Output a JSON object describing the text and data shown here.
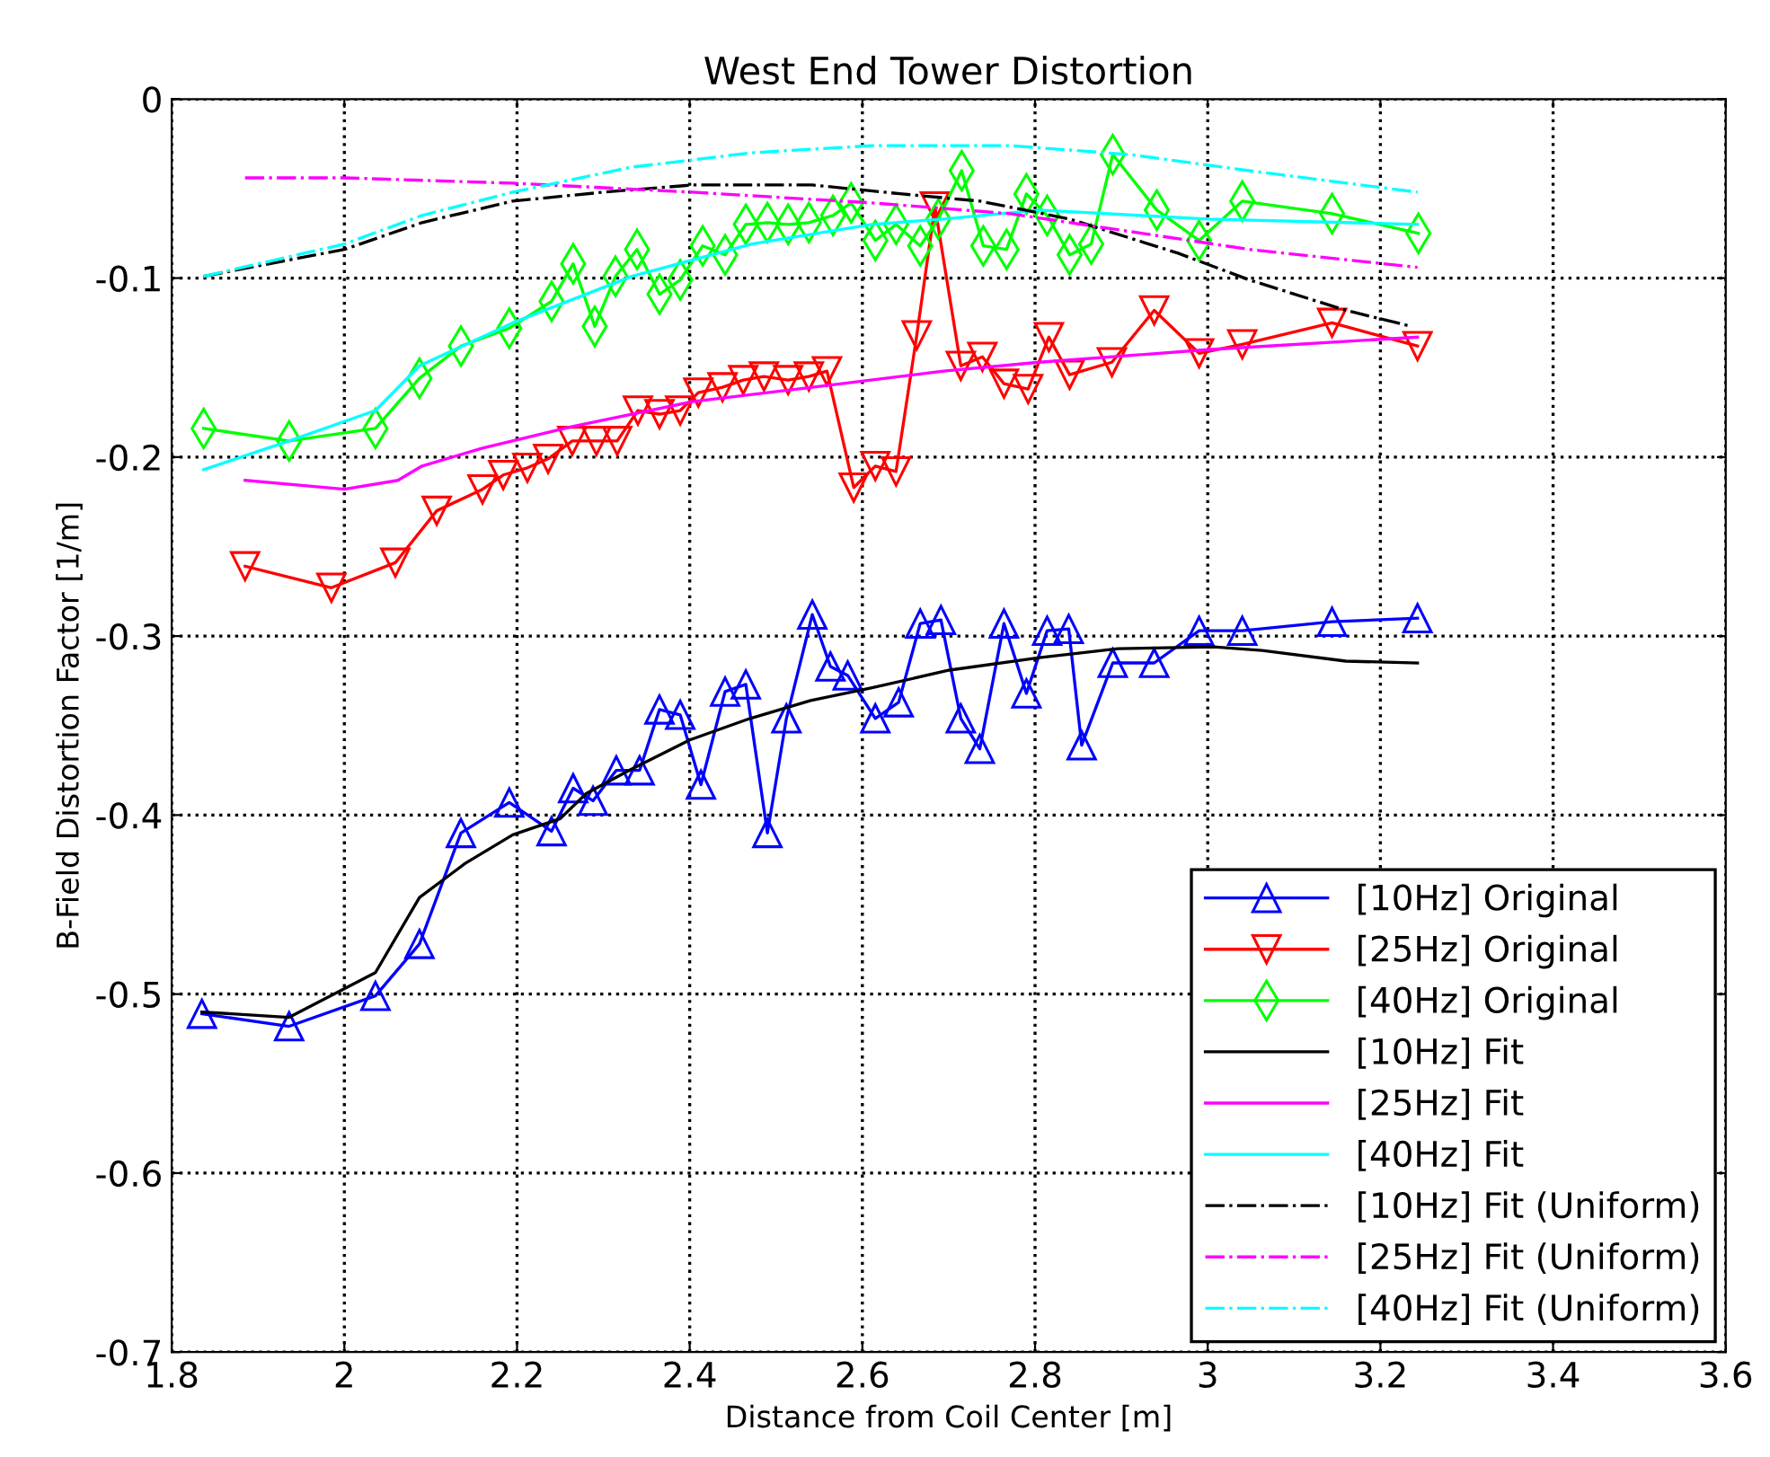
{
  "chart_data": {
    "type": "line",
    "title": "West End Tower Distortion",
    "xlabel": "Distance from Coil Center [m]",
    "ylabel": "B-Field Distortion Factor [1/m]",
    "xlim": [
      1.8,
      3.6
    ],
    "ylim": [
      -0.7,
      0
    ],
    "xticks": [
      1.8,
      2,
      2.2,
      2.4,
      2.6,
      2.8,
      3,
      3.2,
      3.4,
      3.6
    ],
    "yticks": [
      -0.7,
      -0.6,
      -0.5,
      -0.4,
      -0.3,
      -0.2,
      -0.1,
      0
    ],
    "grid": true,
    "legend": "bottom right",
    "series": [
      {
        "name": "[10Hz] Original",
        "color": "#0000ff",
        "marker": "triangle",
        "line_style": "solid",
        "x": [
          1.835,
          1.936,
          2.036,
          2.087,
          2.135,
          2.191,
          2.24,
          2.265,
          2.288,
          2.315,
          2.342,
          2.365,
          2.389,
          2.413,
          2.441,
          2.465,
          2.49,
          2.512,
          2.542,
          2.563,
          2.583,
          2.615,
          2.642,
          2.667,
          2.691,
          2.714,
          2.736,
          2.764,
          2.79,
          2.814,
          2.839,
          2.854,
          2.89,
          2.938,
          2.99,
          3.04,
          3.144,
          3.243
        ],
        "values": [
          -0.511,
          -0.518,
          -0.501,
          -0.472,
          -0.41,
          -0.393,
          -0.409,
          -0.385,
          -0.392,
          -0.375,
          -0.375,
          -0.341,
          -0.344,
          -0.383,
          -0.331,
          -0.327,
          -0.41,
          -0.346,
          -0.288,
          -0.317,
          -0.322,
          -0.346,
          -0.337,
          -0.293,
          -0.291,
          -0.346,
          -0.363,
          -0.293,
          -0.332,
          -0.297,
          -0.296,
          -0.361,
          -0.315,
          -0.315,
          -0.297,
          -0.297,
          -0.292,
          -0.29
        ]
      },
      {
        "name": "[25Hz] Original",
        "color": "#ff0000",
        "marker": "triangle_down",
        "line_style": "solid",
        "x": [
          1.885,
          1.985,
          2.059,
          2.107,
          2.16,
          2.184,
          2.212,
          2.236,
          2.264,
          2.292,
          2.316,
          2.34,
          2.365,
          2.389,
          2.41,
          2.438,
          2.462,
          2.486,
          2.514,
          2.538,
          2.559,
          2.59,
          2.615,
          2.639,
          2.663,
          2.684,
          2.714,
          2.739,
          2.764,
          2.792,
          2.816,
          2.84,
          2.889,
          2.938,
          2.99,
          3.04,
          3.144,
          3.243
        ],
        "values": [
          -0.261,
          -0.273,
          -0.259,
          -0.23,
          -0.218,
          -0.21,
          -0.206,
          -0.201,
          -0.191,
          -0.191,
          -0.191,
          -0.174,
          -0.176,
          -0.174,
          -0.164,
          -0.161,
          -0.157,
          -0.155,
          -0.157,
          -0.155,
          -0.152,
          -0.217,
          -0.205,
          -0.208,
          -0.132,
          -0.06,
          -0.149,
          -0.144,
          -0.159,
          -0.162,
          -0.133,
          -0.154,
          -0.147,
          -0.118,
          -0.142,
          -0.137,
          -0.125,
          -0.138
        ]
      },
      {
        "name": "[40Hz] Original",
        "color": "#00ff00",
        "marker": "diamond",
        "line_style": "solid",
        "x": [
          1.837,
          1.936,
          2.036,
          2.087,
          2.135,
          2.191,
          2.24,
          2.265,
          2.29,
          2.314,
          2.339,
          2.365,
          2.389,
          2.415,
          2.441,
          2.465,
          2.49,
          2.514,
          2.538,
          2.566,
          2.587,
          2.615,
          2.639,
          2.667,
          2.688,
          2.715,
          2.74,
          2.767,
          2.79,
          2.814,
          2.84,
          2.865,
          2.89,
          2.941,
          2.99,
          3.04,
          3.144,
          3.244
        ],
        "values": [
          -0.184,
          -0.191,
          -0.184,
          -0.156,
          -0.138,
          -0.128,
          -0.113,
          -0.092,
          -0.127,
          -0.099,
          -0.084,
          -0.109,
          -0.101,
          -0.082,
          -0.087,
          -0.07,
          -0.069,
          -0.07,
          -0.069,
          -0.065,
          -0.058,
          -0.079,
          -0.07,
          -0.082,
          -0.067,
          -0.04,
          -0.082,
          -0.084,
          -0.053,
          -0.065,
          -0.087,
          -0.081,
          -0.031,
          -0.062,
          -0.079,
          -0.057,
          -0.064,
          -0.075
        ]
      },
      {
        "name": "[10Hz] Fit",
        "color": "#000000",
        "marker": "none",
        "line_style": "solid",
        "x": [
          1.835,
          1.936,
          2.036,
          2.087,
          2.14,
          2.195,
          2.25,
          2.28,
          2.33,
          2.4,
          2.47,
          2.54,
          2.61,
          2.701,
          2.805,
          2.896,
          3.007,
          3.063,
          3.16,
          3.243
        ],
        "values": [
          -0.51,
          -0.513,
          -0.488,
          -0.446,
          -0.427,
          -0.411,
          -0.402,
          -0.388,
          -0.375,
          -0.358,
          -0.346,
          -0.336,
          -0.329,
          -0.319,
          -0.312,
          -0.307,
          -0.306,
          -0.308,
          -0.314,
          -0.315
        ]
      },
      {
        "name": "[25Hz] Fit",
        "color": "#ff00ff",
        "marker": "none",
        "line_style": "solid",
        "x": [
          1.885,
          2.0,
          2.062,
          2.09,
          2.16,
          2.264,
          2.403,
          2.542,
          2.694,
          2.805,
          3.0,
          3.243
        ],
        "values": [
          -0.213,
          -0.218,
          -0.213,
          -0.205,
          -0.195,
          -0.183,
          -0.169,
          -0.161,
          -0.152,
          -0.147,
          -0.14,
          -0.133
        ]
      },
      {
        "name": "[40Hz] Fit",
        "color": "#00ffff",
        "marker": "none",
        "line_style": "solid",
        "x": [
          1.837,
          1.936,
          2.036,
          2.087,
          2.195,
          2.333,
          2.472,
          2.611,
          2.694,
          2.805,
          3.0,
          3.243
        ],
        "values": [
          -0.207,
          -0.191,
          -0.174,
          -0.149,
          -0.125,
          -0.099,
          -0.081,
          -0.07,
          -0.067,
          -0.062,
          -0.067,
          -0.07
        ]
      },
      {
        "name": "[10Hz] Fit (Uniform)",
        "color": "#000000",
        "marker": "none",
        "line_style": "dashdot",
        "x": [
          1.837,
          2.0,
          2.09,
          2.195,
          2.3,
          2.403,
          2.542,
          2.646,
          2.736,
          2.84,
          2.965,
          3.048,
          3.16,
          3.236
        ],
        "values": [
          -0.099,
          -0.084,
          -0.069,
          -0.057,
          -0.052,
          -0.048,
          -0.048,
          -0.053,
          -0.057,
          -0.067,
          -0.086,
          -0.101,
          -0.118,
          -0.127
        ]
      },
      {
        "name": "[25Hz] Fit (Uniform)",
        "color": "#ff00ff",
        "marker": "none",
        "line_style": "dashdot",
        "x": [
          1.885,
          2.0,
          2.195,
          2.403,
          2.611,
          2.771,
          2.91,
          3.048,
          3.243
        ],
        "values": [
          -0.044,
          -0.044,
          -0.047,
          -0.052,
          -0.058,
          -0.064,
          -0.074,
          -0.084,
          -0.094
        ]
      },
      {
        "name": "[40Hz] Fit (Uniform)",
        "color": "#00ffff",
        "marker": "none",
        "line_style": "dashdot",
        "x": [
          1.837,
          2.0,
          2.09,
          2.195,
          2.333,
          2.472,
          2.611,
          2.771,
          2.91,
          3.048,
          3.243
        ],
        "values": [
          -0.099,
          -0.081,
          -0.065,
          -0.052,
          -0.038,
          -0.03,
          -0.026,
          -0.026,
          -0.031,
          -0.04,
          -0.052
        ]
      }
    ]
  }
}
